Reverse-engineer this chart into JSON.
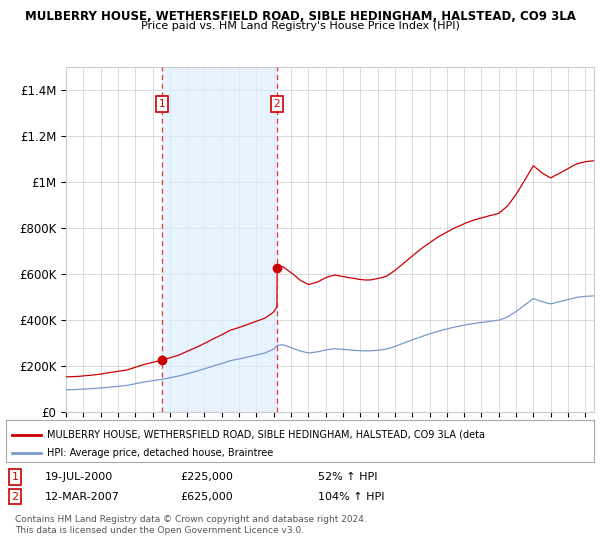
{
  "title1": "MULBERRY HOUSE, WETHERSFIELD ROAD, SIBLE HEDINGHAM, HALSTEAD, CO9 3LA",
  "title2": "Price paid vs. HM Land Registry's House Price Index (HPI)",
  "ylim": [
    0,
    1500000
  ],
  "yticks": [
    0,
    200000,
    400000,
    600000,
    800000,
    1000000,
    1200000,
    1400000
  ],
  "ytick_labels": [
    "£0",
    "£200K",
    "£400K",
    "£600K",
    "£800K",
    "£1M",
    "£1.2M",
    "£1.4M"
  ],
  "background_color": "#ffffff",
  "plot_bg_color": "#ffffff",
  "grid_color": "#cccccc",
  "shaded_region_color": "#ddeeff",
  "red_line_color": "#cc0000",
  "blue_line_color": "#7799cc",
  "dashed_line_color": "#ee3333",
  "purchase1_date": 2000.54,
  "purchase1_price": 225000,
  "purchase2_date": 2007.19,
  "purchase2_price": 625000,
  "legend_red_label": "MULBERRY HOUSE, WETHERSFIELD ROAD, SIBLE HEDINGHAM, HALSTEAD, CO9 3LA (deta",
  "legend_blue_label": "HPI: Average price, detached house, Braintree",
  "table_row1": [
    "1",
    "19-JUL-2000",
    "£225,000",
    "52% ↑ HPI"
  ],
  "table_row2": [
    "2",
    "12-MAR-2007",
    "£625,000",
    "104% ↑ HPI"
  ],
  "footnote1": "Contains HM Land Registry data © Crown copyright and database right 2024.",
  "footnote2": "This data is licensed under the Open Government Licence v3.0.",
  "xstart": 1995.0,
  "xend": 2025.5
}
